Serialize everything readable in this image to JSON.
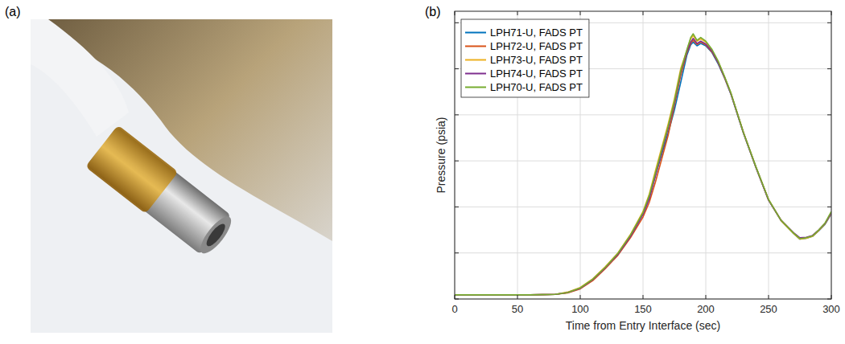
{
  "photo": {
    "label": "(a)"
  },
  "chart_data": {
    "type": "line",
    "label": "(b)",
    "x_label": "Time from Entry Interface (sec)",
    "y_label": "Pressure (psia)",
    "x": [
      0,
      20,
      40,
      60,
      80,
      90,
      100,
      110,
      120,
      130,
      140,
      150,
      155,
      160,
      165,
      170,
      175,
      180,
      185,
      188,
      190,
      193,
      196,
      200,
      205,
      210,
      215,
      220,
      230,
      240,
      250,
      260,
      270,
      275,
      280,
      285,
      290,
      295,
      300
    ],
    "series": [
      {
        "name": "LPH71-U, FADS PT",
        "color": "#0072bd",
        "values": [
          0.09,
          0.09,
          0.09,
          0.09,
          0.1,
          0.14,
          0.24,
          0.42,
          0.68,
          0.98,
          1.38,
          1.85,
          2.2,
          2.7,
          3.15,
          3.6,
          4.1,
          4.7,
          5.3,
          5.52,
          5.58,
          5.5,
          5.55,
          5.5,
          5.35,
          5.1,
          4.8,
          4.45,
          3.6,
          2.85,
          2.15,
          1.7,
          1.42,
          1.3,
          1.32,
          1.36,
          1.48,
          1.62,
          1.85
        ]
      },
      {
        "name": "LPH72-U, FADS PT",
        "color": "#d95319",
        "values": [
          0.09,
          0.09,
          0.09,
          0.09,
          0.1,
          0.13,
          0.22,
          0.4,
          0.66,
          0.95,
          1.33,
          1.78,
          2.1,
          2.55,
          3.05,
          3.55,
          4.2,
          4.85,
          5.35,
          5.55,
          5.62,
          5.53,
          5.58,
          5.52,
          5.36,
          5.12,
          4.8,
          4.46,
          3.62,
          2.86,
          2.15,
          1.71,
          1.43,
          1.31,
          1.33,
          1.37,
          1.49,
          1.64,
          1.87
        ]
      },
      {
        "name": "LPH73-U, FADS PT",
        "color": "#edb120",
        "values": [
          0.09,
          0.09,
          0.09,
          0.09,
          0.1,
          0.15,
          0.25,
          0.44,
          0.7,
          1.0,
          1.4,
          1.9,
          2.28,
          2.8,
          3.3,
          3.8,
          4.35,
          5.0,
          5.4,
          5.65,
          5.72,
          5.6,
          5.65,
          5.58,
          5.4,
          5.15,
          4.82,
          4.47,
          3.61,
          2.86,
          2.16,
          1.7,
          1.42,
          1.3,
          1.32,
          1.36,
          1.49,
          1.63,
          1.86
        ]
      },
      {
        "name": "LPH74-U, FADS PT",
        "color": "#7e2f8e",
        "values": [
          0.09,
          0.09,
          0.09,
          0.09,
          0.1,
          0.14,
          0.23,
          0.42,
          0.68,
          0.97,
          1.36,
          1.84,
          2.18,
          2.68,
          3.2,
          3.7,
          4.25,
          4.92,
          5.38,
          5.58,
          5.66,
          5.55,
          5.6,
          5.54,
          5.38,
          5.13,
          4.81,
          4.46,
          3.61,
          2.86,
          2.15,
          1.71,
          1.44,
          1.33,
          1.34,
          1.38,
          1.5,
          1.64,
          1.87
        ]
      },
      {
        "name": "LPH70-U, FADS PT",
        "color": "#77ac30",
        "values": [
          0.09,
          0.09,
          0.09,
          0.09,
          0.1,
          0.14,
          0.24,
          0.43,
          0.69,
          0.99,
          1.39,
          1.88,
          2.25,
          2.75,
          3.25,
          3.75,
          4.3,
          4.95,
          5.42,
          5.68,
          5.76,
          5.62,
          5.68,
          5.6,
          5.42,
          5.16,
          4.83,
          4.48,
          3.62,
          2.87,
          2.16,
          1.71,
          1.43,
          1.31,
          1.33,
          1.37,
          1.5,
          1.65,
          1.9
        ]
      }
    ],
    "xlim": [
      0,
      300
    ],
    "xticks": [
      0,
      50,
      100,
      150,
      200,
      250,
      300
    ],
    "ylim": [
      0,
      6.25
    ],
    "yticks": [
      0,
      1,
      2,
      3,
      4,
      5,
      6
    ],
    "tick_labels": "x",
    "grid": true,
    "legend": "top-left"
  }
}
